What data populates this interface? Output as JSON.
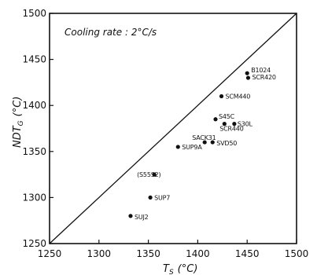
{
  "chart_data": {
    "type": "scatter",
    "annotation": "Cooling rate : 2°C/s",
    "xlabel": "T_S (°C)",
    "xlabel_main": "T",
    "xlabel_sub": "S",
    "xlabel_unit": "(°C)",
    "ylabel": "NDT_G (°C)",
    "ylabel_main": "NDT",
    "ylabel_sub": "G",
    "ylabel_unit": "(°C)",
    "xlim": [
      1250,
      1500
    ],
    "ylim": [
      1250,
      1500
    ],
    "x_ticks": [
      1250,
      1300,
      1350,
      1400,
      1450,
      1500
    ],
    "y_ticks": [
      1250,
      1300,
      1350,
      1400,
      1450,
      1500
    ],
    "reference_line": {
      "type": "identity",
      "from": [
        1250,
        1250
      ],
      "to": [
        1500,
        1500
      ]
    },
    "grid": false,
    "points": [
      {
        "label": "B1024",
        "x": 1450,
        "y": 1435
      },
      {
        "label": "SCR420",
        "x": 1451,
        "y": 1430
      },
      {
        "label": "SCM440",
        "x": 1424,
        "y": 1410
      },
      {
        "label": "S45C",
        "x": 1418,
        "y": 1385
      },
      {
        "label": "S30L",
        "x": 1437,
        "y": 1380
      },
      {
        "label": "SCR440",
        "x": 1427,
        "y": 1380
      },
      {
        "label": "SACK31",
        "x": 1407,
        "y": 1360
      },
      {
        "label": "SVD50",
        "x": 1415,
        "y": 1360
      },
      {
        "label": "SUP9A",
        "x": 1380,
        "y": 1355
      },
      {
        "label": "(S55S2)",
        "x": 1356,
        "y": 1325
      },
      {
        "label": "SUP7",
        "x": 1352,
        "y": 1300
      },
      {
        "label": "SUJ2",
        "x": 1332,
        "y": 1280
      }
    ]
  }
}
